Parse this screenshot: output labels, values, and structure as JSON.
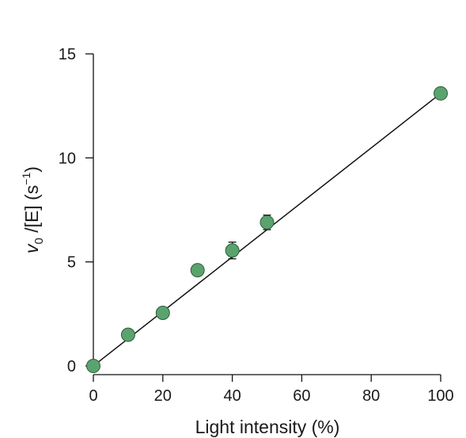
{
  "chart_data": {
    "type": "scatter",
    "xlabel": "Light intensity (%)",
    "ylabel": {
      "var": "v",
      "sub": "0",
      "main": " /[E] (s",
      "sup": "−1",
      "close": ")"
    },
    "xlim": [
      0,
      100
    ],
    "ylim": [
      0,
      15
    ],
    "xticks": [
      0,
      20,
      40,
      60,
      80,
      100
    ],
    "yticks": [
      0,
      5,
      10,
      15
    ],
    "grid": false,
    "series": [
      {
        "points": [
          {
            "x": 0,
            "y": 0,
            "err": 0
          },
          {
            "x": 10,
            "y": 1.5,
            "err": 0
          },
          {
            "x": 20,
            "y": 2.55,
            "err": 0
          },
          {
            "x": 30,
            "y": 4.6,
            "err": 0
          },
          {
            "x": 40,
            "y": 5.55,
            "err": 0.4
          },
          {
            "x": 50,
            "y": 6.9,
            "err": 0.35
          },
          {
            "x": 100,
            "y": 13.1,
            "err": 0
          }
        ]
      }
    ],
    "fit_line": {
      "x": [
        0,
        100
      ],
      "y": [
        0,
        13.1
      ]
    },
    "colors": {
      "marker_fill": "#5aa36e",
      "marker_edge": "#2f5e3b",
      "line": "#111111",
      "axis": "#111111"
    }
  }
}
